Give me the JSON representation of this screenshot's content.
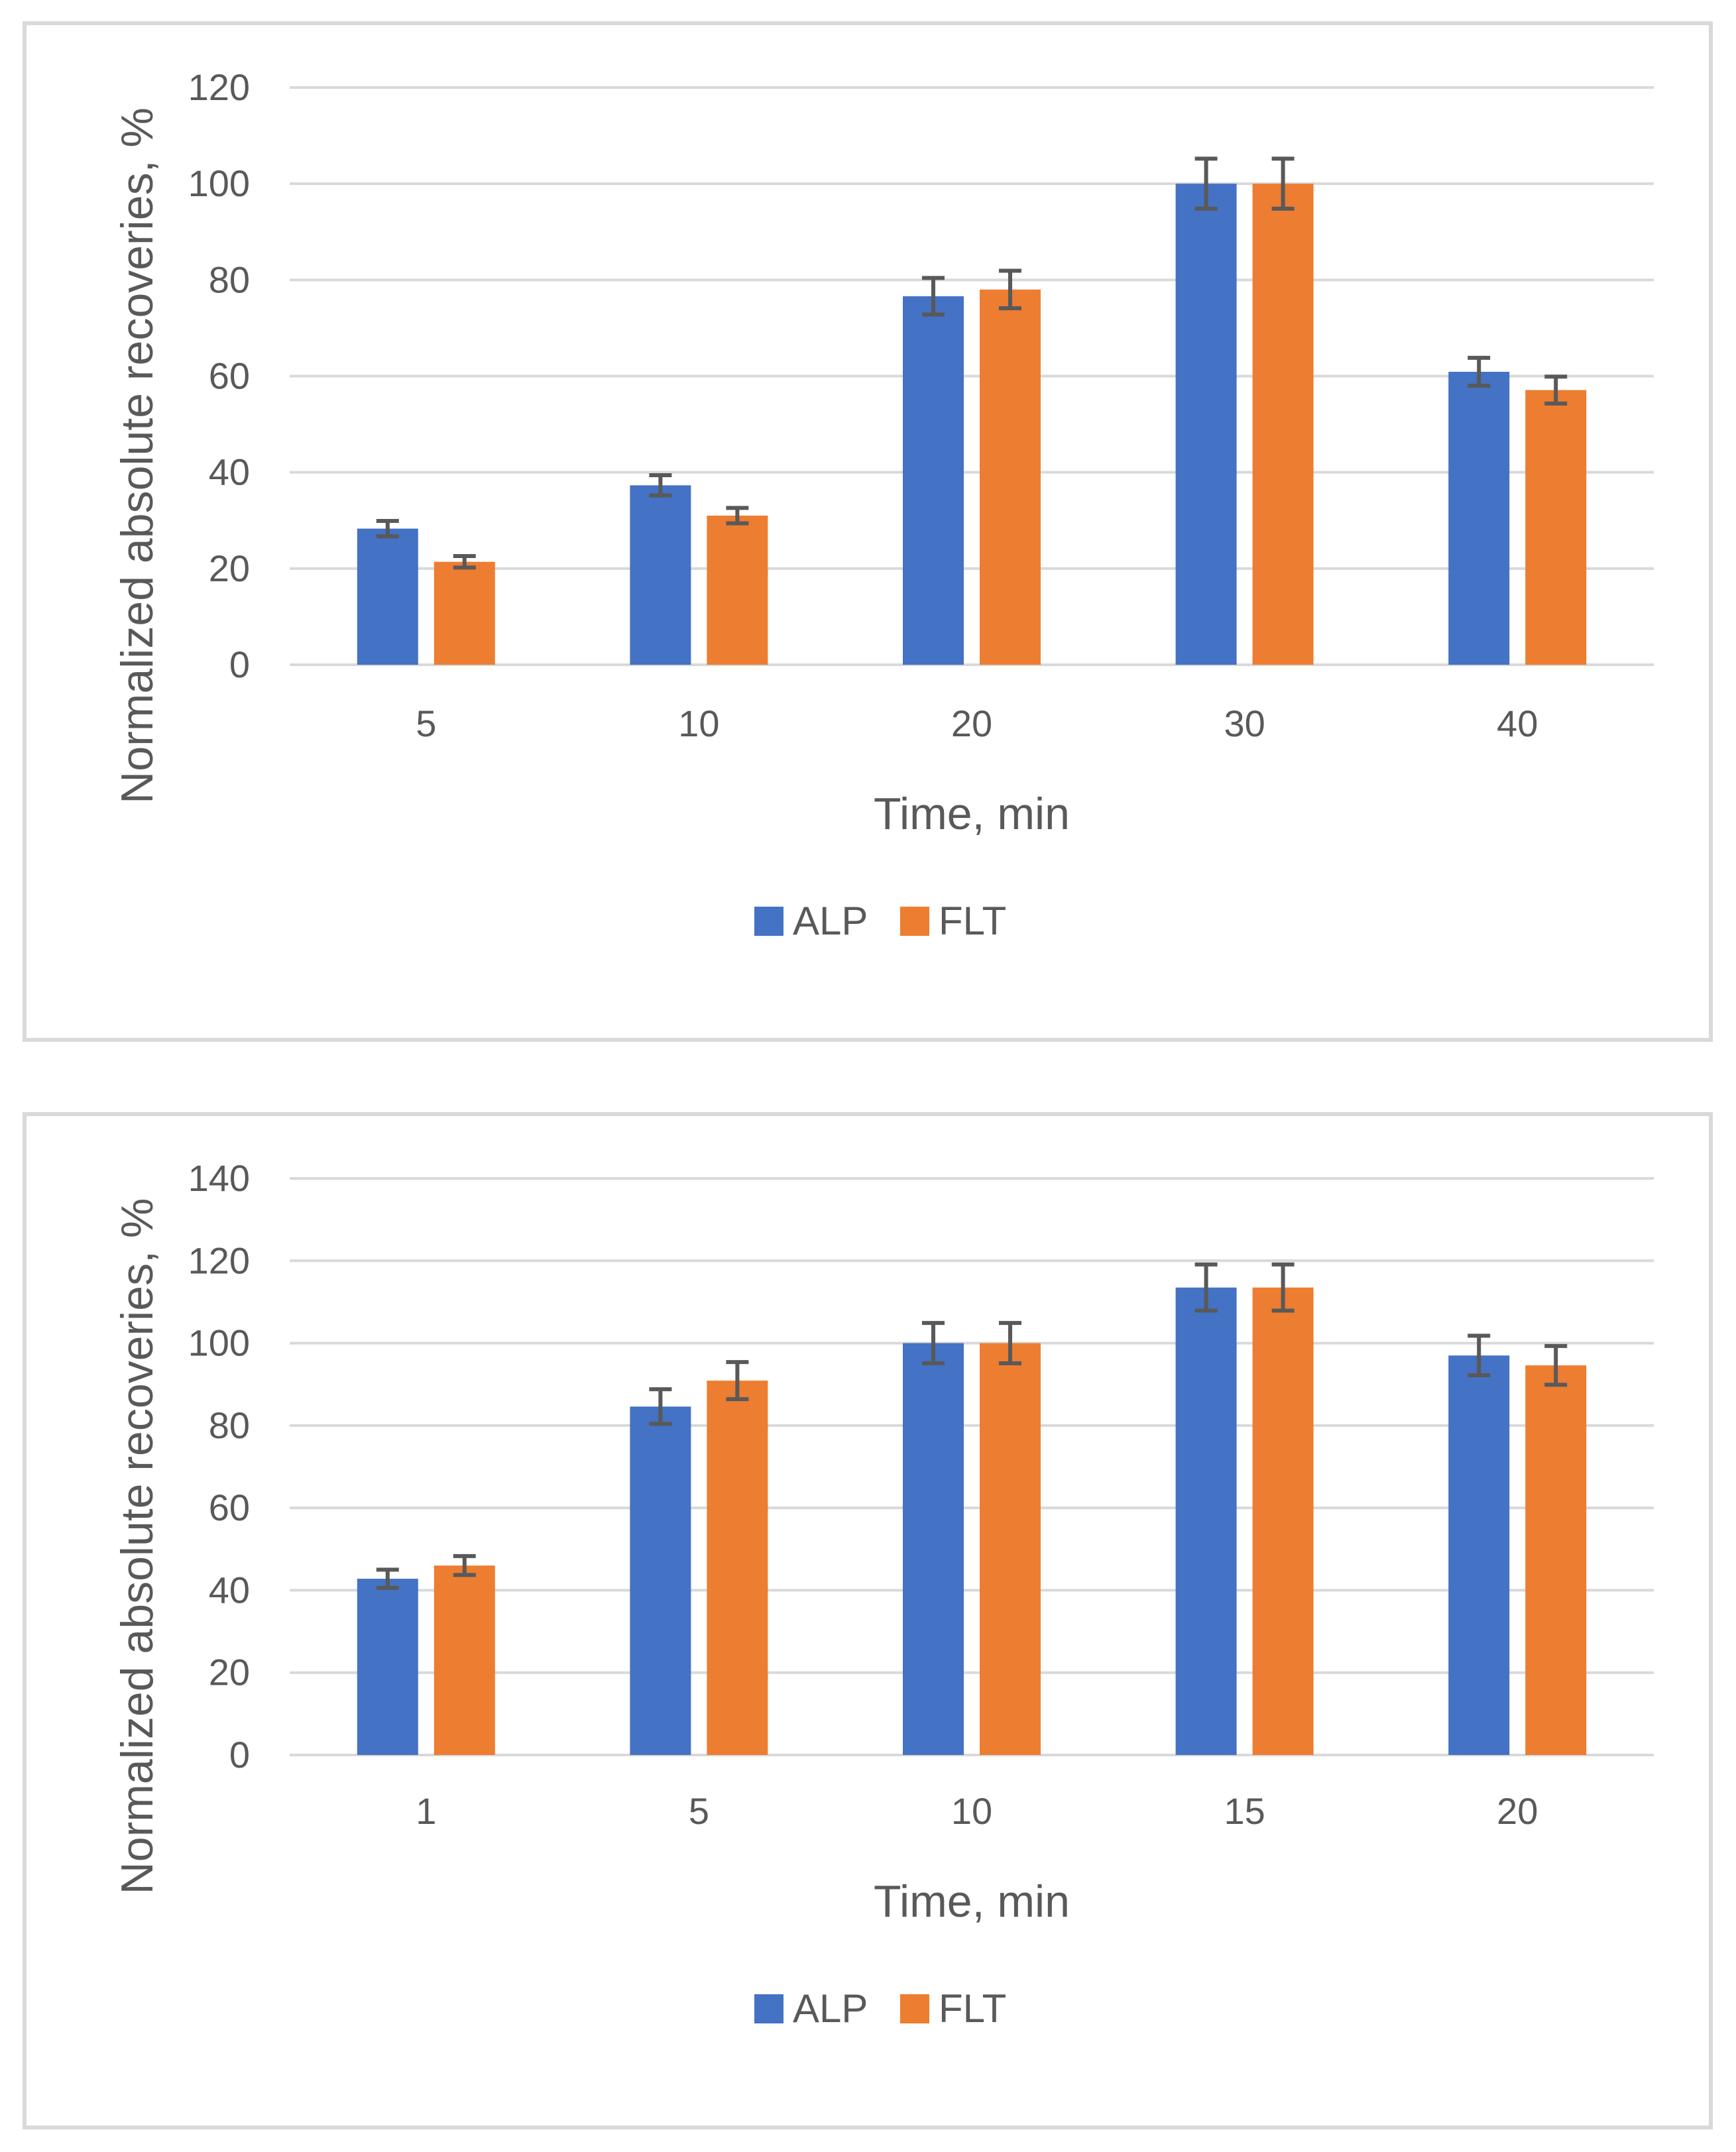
{
  "chart_data": [
    {
      "type": "bar",
      "title": "",
      "xlabel": "Time, min",
      "ylabel": "Normalized absolute recoveries, %",
      "categories": [
        "5",
        "10",
        "20",
        "30",
        "40"
      ],
      "ylim": [
        0,
        120
      ],
      "yticks": [
        0,
        20,
        40,
        60,
        80,
        100,
        120
      ],
      "grid": true,
      "legend_position": "bottom",
      "series": [
        {
          "name": "ALP",
          "color": "#4472c4",
          "values": [
            28.3,
            37.3,
            76.6,
            100,
            60.9
          ],
          "errors": [
            1.6,
            2.1,
            3.8,
            5.2,
            2.9
          ]
        },
        {
          "name": "FLT",
          "color": "#ed7d31",
          "values": [
            21.4,
            31.0,
            78.0,
            100,
            57.1
          ],
          "errors": [
            1.2,
            1.6,
            3.9,
            5.2,
            2.8
          ]
        }
      ]
    },
    {
      "type": "bar",
      "title": "",
      "xlabel": "Time, min",
      "ylabel": "Normalized absolute recoveries, %",
      "categories": [
        "1",
        "5",
        "10",
        "15",
        "20"
      ],
      "ylim": [
        0,
        140
      ],
      "yticks": [
        0,
        20,
        40,
        60,
        80,
        100,
        120,
        140
      ],
      "grid": true,
      "legend_position": "bottom",
      "series": [
        {
          "name": "ALP",
          "color": "#4472c4",
          "values": [
            42.8,
            84.6,
            100,
            113.5,
            97.0
          ],
          "errors": [
            2.2,
            4.2,
            4.9,
            5.6,
            4.8
          ]
        },
        {
          "name": "FLT",
          "color": "#ed7d31",
          "values": [
            46.0,
            90.9,
            100,
            113.5,
            94.6
          ],
          "errors": [
            2.3,
            4.5,
            4.9,
            5.6,
            4.7
          ]
        }
      ]
    }
  ],
  "colors": {
    "grid": "#d9d9d9",
    "error_bar": "#595959",
    "text": "#595959",
    "border": "#d9d9d9"
  }
}
